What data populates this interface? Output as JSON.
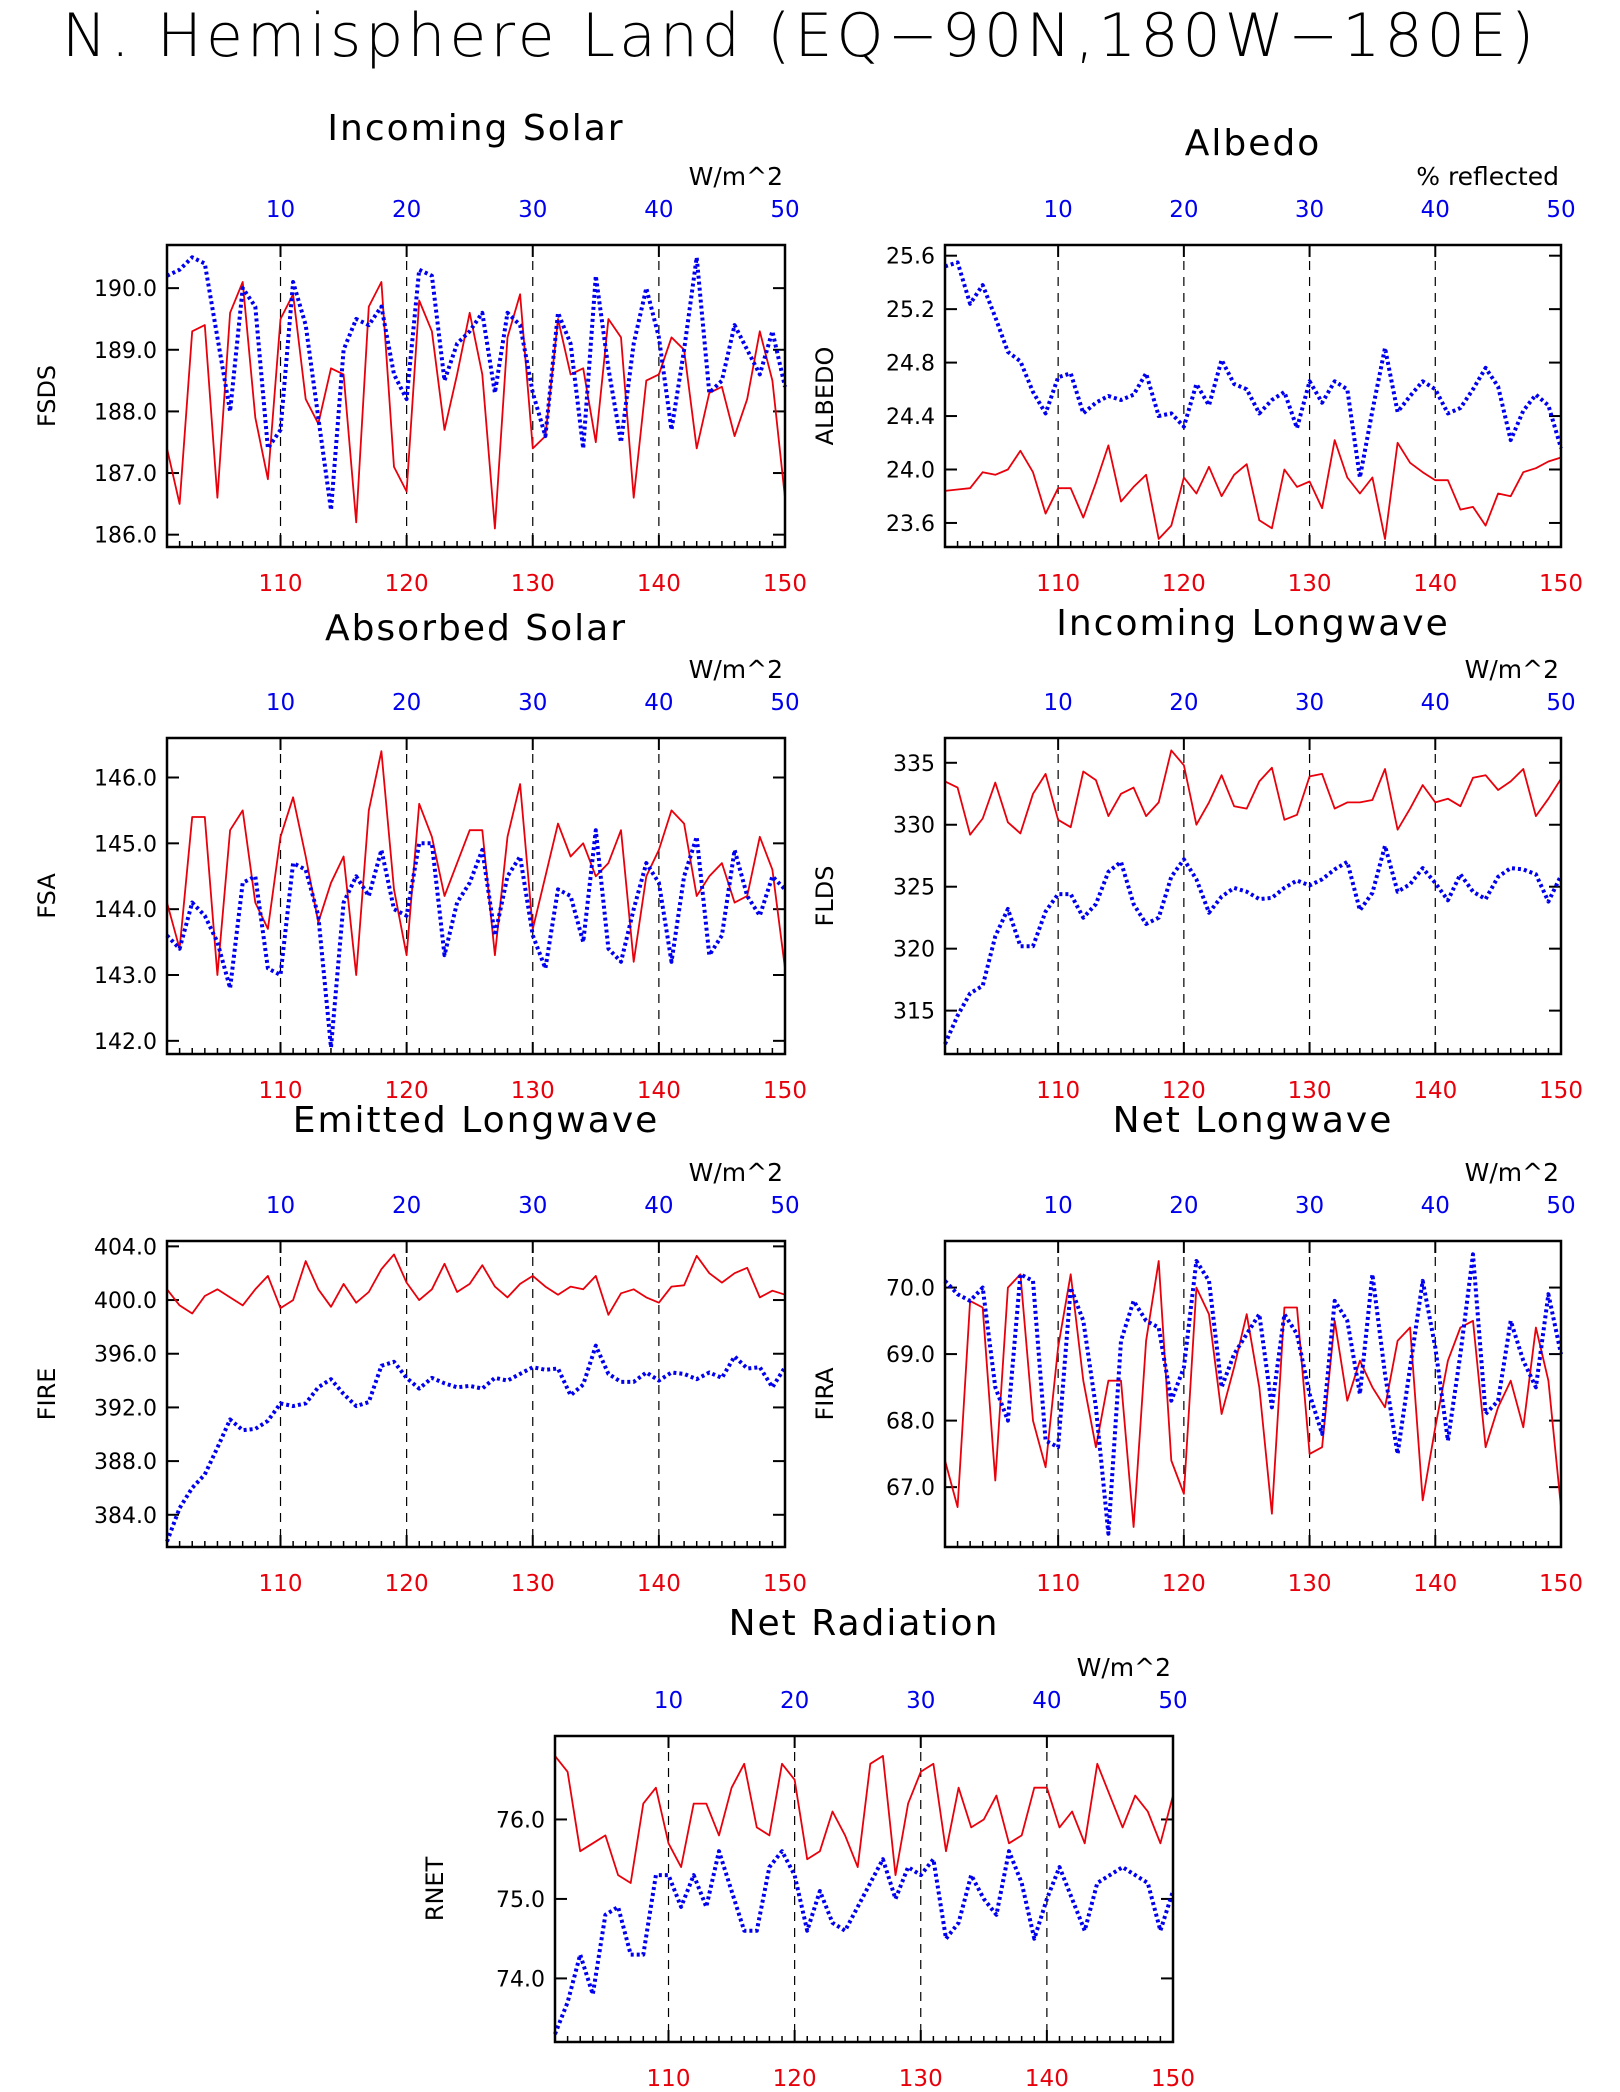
{
  "figure_title": "N. Hemisphere Land (EQ−90N,180W−180E)",
  "colors": {
    "bottom_axis": "#e8000b",
    "top_axis": "#0000ee",
    "red_series": "#e8000b",
    "blue_series": "#0000ee",
    "frame": "#000000",
    "grid": "#000000"
  },
  "chart_data": [
    {
      "type": "line",
      "title": "Incoming Solar",
      "ylabel": "FSDS",
      "units": "W/m^2",
      "bottom_ticks": [
        "110",
        "120",
        "130",
        "140",
        "150"
      ],
      "top_ticks": [
        "10",
        "20",
        "30",
        "40",
        "50"
      ],
      "y_ticks": [
        "186.0",
        "187.0",
        "188.0",
        "189.0",
        "190.0"
      ],
      "ylim": [
        185.8,
        190.7
      ],
      "x_range": [
        101,
        150
      ],
      "grid": "vertical dashed at 110, 120, 130, 140",
      "series": [
        {
          "color": "red",
          "style": "solid",
          "values": [
            187.4,
            186.5,
            189.3,
            189.4,
            186.6,
            189.6,
            190.1,
            187.9,
            186.9,
            189.5,
            189.9,
            188.2,
            187.8,
            188.7,
            188.6,
            186.2,
            189.7,
            190.1,
            187.1,
            186.7,
            189.8,
            189.3,
            187.7,
            188.6,
            189.6,
            188.6,
            186.1,
            189.2,
            189.9,
            187.4,
            187.6,
            189.5,
            188.6,
            188.7,
            187.5,
            189.5,
            189.2,
            186.6,
            188.5,
            188.6,
            189.2,
            189.0,
            187.4,
            188.3,
            188.4,
            187.6,
            188.2,
            189.3,
            188.5,
            186.6
          ]
        },
        {
          "color": "blue",
          "style": "dotted",
          "values": [
            190.2,
            190.3,
            190.5,
            190.4,
            189.2,
            188.0,
            190.0,
            189.7,
            187.4,
            187.7,
            190.1,
            189.4,
            187.9,
            186.4,
            189.0,
            189.5,
            189.4,
            189.7,
            188.6,
            188.2,
            190.3,
            190.2,
            188.5,
            189.1,
            189.3,
            189.6,
            188.3,
            189.6,
            189.4,
            188.3,
            187.6,
            189.6,
            189.1,
            187.4,
            190.2,
            188.7,
            187.5,
            189.1,
            190.0,
            189.2,
            187.7,
            189.0,
            190.5,
            188.3,
            188.5,
            189.4,
            189.0,
            188.6,
            189.3,
            188.4
          ]
        }
      ]
    },
    {
      "type": "line",
      "title": "Albedo",
      "ylabel": "ALBEDO",
      "units": "% reflected",
      "bottom_ticks": [
        "110",
        "120",
        "130",
        "140",
        "150"
      ],
      "top_ticks": [
        "10",
        "20",
        "30",
        "40",
        "50"
      ],
      "y_ticks": [
        "23.6",
        "24.0",
        "24.4",
        "24.8",
        "25.2",
        "25.6"
      ],
      "ylim": [
        23.42,
        25.68
      ],
      "x_range": [
        101,
        150
      ],
      "grid": "vertical dashed at 110, 120, 130, 140",
      "series": [
        {
          "color": "red",
          "style": "solid",
          "values": [
            23.84,
            23.85,
            23.86,
            23.98,
            23.96,
            24.0,
            24.14,
            23.98,
            23.67,
            23.86,
            23.86,
            23.64,
            23.9,
            24.18,
            23.76,
            23.87,
            23.96,
            23.48,
            23.58,
            23.94,
            23.82,
            24.02,
            23.8,
            23.96,
            24.04,
            23.62,
            23.56,
            24.0,
            23.87,
            23.91,
            23.71,
            24.22,
            23.94,
            23.82,
            23.94,
            23.48,
            24.2,
            24.05,
            23.98,
            23.92,
            23.92,
            23.7,
            23.72,
            23.58,
            23.82,
            23.8,
            23.98,
            24.01,
            24.06,
            24.09
          ]
        },
        {
          "color": "blue",
          "style": "dotted",
          "values": [
            25.52,
            25.55,
            25.24,
            25.38,
            25.14,
            24.88,
            24.81,
            24.58,
            24.42,
            24.69,
            24.72,
            24.42,
            24.5,
            24.55,
            24.52,
            24.56,
            24.72,
            24.4,
            24.42,
            24.32,
            24.64,
            24.48,
            24.82,
            24.64,
            24.6,
            24.42,
            24.52,
            24.58,
            24.31,
            24.66,
            24.5,
            24.66,
            24.6,
            23.94,
            24.44,
            24.91,
            24.43,
            24.55,
            24.66,
            24.6,
            24.42,
            24.46,
            24.6,
            24.76,
            24.62,
            24.22,
            24.44,
            24.56,
            24.48,
            24.16
          ]
        }
      ]
    },
    {
      "type": "line",
      "title": "Absorbed Solar",
      "ylabel": "FSA",
      "units": "W/m^2",
      "bottom_ticks": [
        "110",
        "120",
        "130",
        "140",
        "150"
      ],
      "top_ticks": [
        "10",
        "20",
        "30",
        "40",
        "50"
      ],
      "y_ticks": [
        "142.0",
        "143.0",
        "144.0",
        "145.0",
        "146.0"
      ],
      "ylim": [
        141.8,
        146.6
      ],
      "x_range": [
        101,
        150
      ],
      "grid": "vertical dashed at 110, 120, 130, 140",
      "series": [
        {
          "color": "red",
          "style": "solid",
          "values": [
            144.1,
            143.4,
            145.4,
            145.4,
            143.0,
            145.2,
            145.5,
            144.1,
            143.7,
            145.1,
            145.7,
            144.8,
            143.8,
            144.4,
            144.8,
            143.0,
            145.5,
            146.4,
            144.3,
            143.3,
            145.6,
            145.1,
            144.2,
            144.7,
            145.2,
            145.2,
            143.3,
            145.1,
            145.9,
            143.7,
            144.5,
            145.3,
            144.8,
            145.0,
            144.5,
            144.7,
            145.2,
            143.2,
            144.5,
            144.9,
            145.5,
            145.3,
            144.2,
            144.5,
            144.7,
            144.1,
            144.2,
            145.1,
            144.6,
            143.1
          ]
        },
        {
          "color": "blue",
          "style": "dotted",
          "values": [
            143.6,
            143.4,
            144.1,
            143.9,
            143.5,
            142.8,
            144.4,
            144.5,
            143.1,
            143.0,
            144.7,
            144.6,
            143.9,
            141.9,
            144.1,
            144.5,
            144.2,
            144.9,
            144.0,
            143.9,
            145.0,
            145.0,
            143.3,
            144.1,
            144.4,
            144.9,
            143.6,
            144.5,
            144.8,
            143.6,
            143.1,
            144.3,
            144.2,
            143.5,
            145.2,
            143.4,
            143.2,
            144.0,
            144.7,
            144.4,
            143.2,
            144.5,
            145.1,
            143.3,
            143.6,
            144.9,
            144.2,
            143.9,
            144.5,
            144.3
          ]
        }
      ]
    },
    {
      "type": "line",
      "title": "Incoming Longwave",
      "ylabel": "FLDS",
      "units": "W/m^2",
      "bottom_ticks": [
        "110",
        "120",
        "130",
        "140",
        "150"
      ],
      "top_ticks": [
        "10",
        "20",
        "30",
        "40",
        "50"
      ],
      "y_ticks": [
        "315",
        "320",
        "325",
        "330",
        "335"
      ],
      "ylim": [
        311.5,
        337.0
      ],
      "x_range": [
        101,
        150
      ],
      "grid": "vertical dashed at 110, 120, 130, 140",
      "series": [
        {
          "color": "red",
          "style": "solid",
          "values": [
            333.5,
            333.0,
            329.2,
            330.5,
            333.4,
            330.2,
            329.3,
            332.5,
            334.1,
            330.4,
            329.8,
            334.3,
            333.6,
            330.7,
            332.5,
            333.0,
            330.7,
            331.8,
            336.0,
            334.8,
            330.0,
            331.8,
            334.0,
            331.5,
            331.3,
            333.5,
            334.6,
            330.4,
            330.8,
            333.9,
            334.1,
            331.3,
            331.8,
            331.8,
            332.0,
            334.5,
            329.6,
            331.3,
            333.2,
            331.8,
            332.1,
            331.5,
            333.8,
            334.0,
            332.8,
            333.5,
            334.5,
            330.7,
            332.1,
            333.7
          ]
        },
        {
          "color": "blue",
          "style": "dotted",
          "values": [
            312.3,
            314.6,
            316.4,
            317.0,
            321.0,
            323.2,
            320.2,
            320.2,
            323.0,
            324.4,
            324.4,
            322.5,
            323.6,
            326.2,
            327.0,
            323.6,
            322.0,
            322.5,
            325.8,
            327.2,
            325.6,
            322.9,
            324.2,
            324.9,
            324.6,
            324.0,
            324.1,
            324.9,
            325.5,
            325.1,
            325.6,
            326.4,
            327.0,
            323.1,
            324.5,
            328.3,
            324.6,
            325.2,
            326.5,
            325.3,
            323.9,
            326.0,
            324.6,
            324.0,
            325.8,
            326.5,
            326.4,
            326.0,
            323.8,
            325.9
          ]
        }
      ]
    },
    {
      "type": "line",
      "title": "Emitted Longwave",
      "ylabel": "FIRE",
      "units": "W/m^2",
      "bottom_ticks": [
        "110",
        "120",
        "130",
        "140",
        "150"
      ],
      "top_ticks": [
        "10",
        "20",
        "30",
        "40",
        "50"
      ],
      "y_ticks": [
        "384.0",
        "388.0",
        "392.0",
        "396.0",
        "400.0",
        "404.0"
      ],
      "ylim": [
        381.6,
        404.4
      ],
      "x_range": [
        101,
        150
      ],
      "grid": "vertical dashed at 110, 120, 130, 140",
      "series": [
        {
          "color": "red",
          "style": "solid",
          "values": [
            400.8,
            399.6,
            399.0,
            400.3,
            400.8,
            400.2,
            399.6,
            400.8,
            401.8,
            399.4,
            400.0,
            402.9,
            400.8,
            399.5,
            401.2,
            399.8,
            400.6,
            402.3,
            403.4,
            401.3,
            400.0,
            400.8,
            402.7,
            400.6,
            401.2,
            402.6,
            401.0,
            400.2,
            401.2,
            401.8,
            401.0,
            400.4,
            401.0,
            400.8,
            401.8,
            398.9,
            400.5,
            400.8,
            400.2,
            399.8,
            401.0,
            401.1,
            403.3,
            402.0,
            401.3,
            402.0,
            402.4,
            400.2,
            400.7,
            400.4
          ]
        },
        {
          "color": "blue",
          "style": "dotted",
          "values": [
            382.0,
            384.5,
            386.0,
            387.0,
            389.0,
            391.1,
            390.3,
            390.4,
            391.0,
            392.3,
            392.1,
            392.3,
            393.5,
            394.1,
            393.0,
            392.1,
            392.4,
            395.1,
            395.4,
            394.2,
            393.4,
            394.2,
            393.8,
            393.5,
            393.6,
            393.4,
            394.2,
            394.0,
            394.5,
            395.0,
            394.8,
            394.9,
            392.9,
            393.7,
            396.6,
            394.5,
            393.9,
            393.9,
            394.6,
            394.0,
            394.6,
            394.5,
            394.1,
            394.6,
            394.2,
            395.8,
            394.9,
            395.0,
            393.5,
            395.0
          ]
        }
      ]
    },
    {
      "type": "line",
      "title": "Net Longwave",
      "ylabel": "FIRA",
      "units": "W/m^2",
      "bottom_ticks": [
        "110",
        "120",
        "130",
        "140",
        "150"
      ],
      "top_ticks": [
        "10",
        "20",
        "30",
        "40",
        "50"
      ],
      "y_ticks": [
        "67.0",
        "68.0",
        "69.0",
        "70.0"
      ],
      "ylim": [
        66.1,
        70.7
      ],
      "x_range": [
        101,
        150
      ],
      "grid": "vertical dashed at 110, 120, 130, 140",
      "series": [
        {
          "color": "red",
          "style": "solid",
          "values": [
            67.4,
            66.7,
            69.8,
            69.7,
            67.1,
            70.0,
            70.2,
            68.0,
            67.3,
            69.1,
            70.2,
            68.6,
            67.6,
            68.6,
            68.6,
            66.4,
            69.2,
            70.4,
            67.4,
            66.9,
            70.0,
            69.6,
            68.1,
            68.8,
            69.6,
            68.5,
            66.6,
            69.7,
            69.7,
            67.5,
            67.6,
            69.5,
            68.3,
            68.9,
            68.5,
            68.2,
            69.2,
            69.4,
            66.8,
            67.9,
            68.9,
            69.4,
            69.5,
            67.6,
            68.2,
            68.6,
            67.9,
            69.4,
            68.6,
            66.7
          ]
        },
        {
          "color": "blue",
          "style": "dotted",
          "values": [
            70.1,
            69.9,
            69.8,
            70.0,
            68.5,
            68.0,
            70.2,
            70.1,
            67.7,
            67.6,
            70.0,
            69.5,
            68.2,
            66.3,
            69.2,
            69.8,
            69.5,
            69.4,
            68.3,
            68.8,
            70.4,
            70.1,
            68.5,
            69.0,
            69.3,
            69.6,
            68.2,
            69.6,
            69.3,
            68.4,
            67.8,
            69.8,
            69.5,
            68.4,
            70.2,
            68.7,
            67.5,
            68.8,
            70.1,
            69.1,
            67.7,
            69.0,
            70.5,
            68.1,
            68.3,
            69.5,
            68.9,
            68.5,
            69.9,
            69.0
          ]
        }
      ]
    },
    {
      "type": "line",
      "title": "Net Radiation",
      "ylabel": "RNET",
      "units": "W/m^2",
      "bottom_ticks": [
        "110",
        "120",
        "130",
        "140",
        "150"
      ],
      "top_ticks": [
        "10",
        "20",
        "30",
        "40",
        "50"
      ],
      "y_ticks": [
        "74.0",
        "75.0",
        "76.0"
      ],
      "ylim": [
        73.2,
        77.05
      ],
      "x_range": [
        101,
        150
      ],
      "grid": "vertical dashed at 110, 120, 130, 140",
      "series": [
        {
          "color": "red",
          "style": "solid",
          "values": [
            76.8,
            76.6,
            75.6,
            75.7,
            75.8,
            75.3,
            75.2,
            76.2,
            76.4,
            75.7,
            75.4,
            76.2,
            76.2,
            75.8,
            76.4,
            76.7,
            75.9,
            75.8,
            76.7,
            76.5,
            75.5,
            75.6,
            76.1,
            75.8,
            75.4,
            76.7,
            76.8,
            75.3,
            76.2,
            76.6,
            76.7,
            75.6,
            76.4,
            75.9,
            76.0,
            76.3,
            75.7,
            75.8,
            76.4,
            76.4,
            75.9,
            76.1,
            75.7,
            76.7,
            76.3,
            75.9,
            76.3,
            76.1,
            75.7,
            76.3
          ]
        },
        {
          "color": "blue",
          "style": "dotted",
          "values": [
            73.3,
            73.7,
            74.3,
            73.8,
            74.8,
            74.9,
            74.3,
            74.3,
            75.3,
            75.3,
            74.9,
            75.3,
            74.9,
            75.6,
            75.1,
            74.6,
            74.6,
            75.4,
            75.6,
            75.3,
            74.6,
            75.1,
            74.7,
            74.6,
            74.9,
            75.2,
            75.5,
            75.0,
            75.4,
            75.3,
            75.5,
            74.5,
            74.7,
            75.3,
            75.0,
            74.8,
            75.6,
            75.2,
            74.5,
            75.0,
            75.4,
            75.0,
            74.6,
            75.2,
            75.3,
            75.4,
            75.3,
            75.2,
            74.6,
            75.1
          ]
        }
      ]
    }
  ]
}
